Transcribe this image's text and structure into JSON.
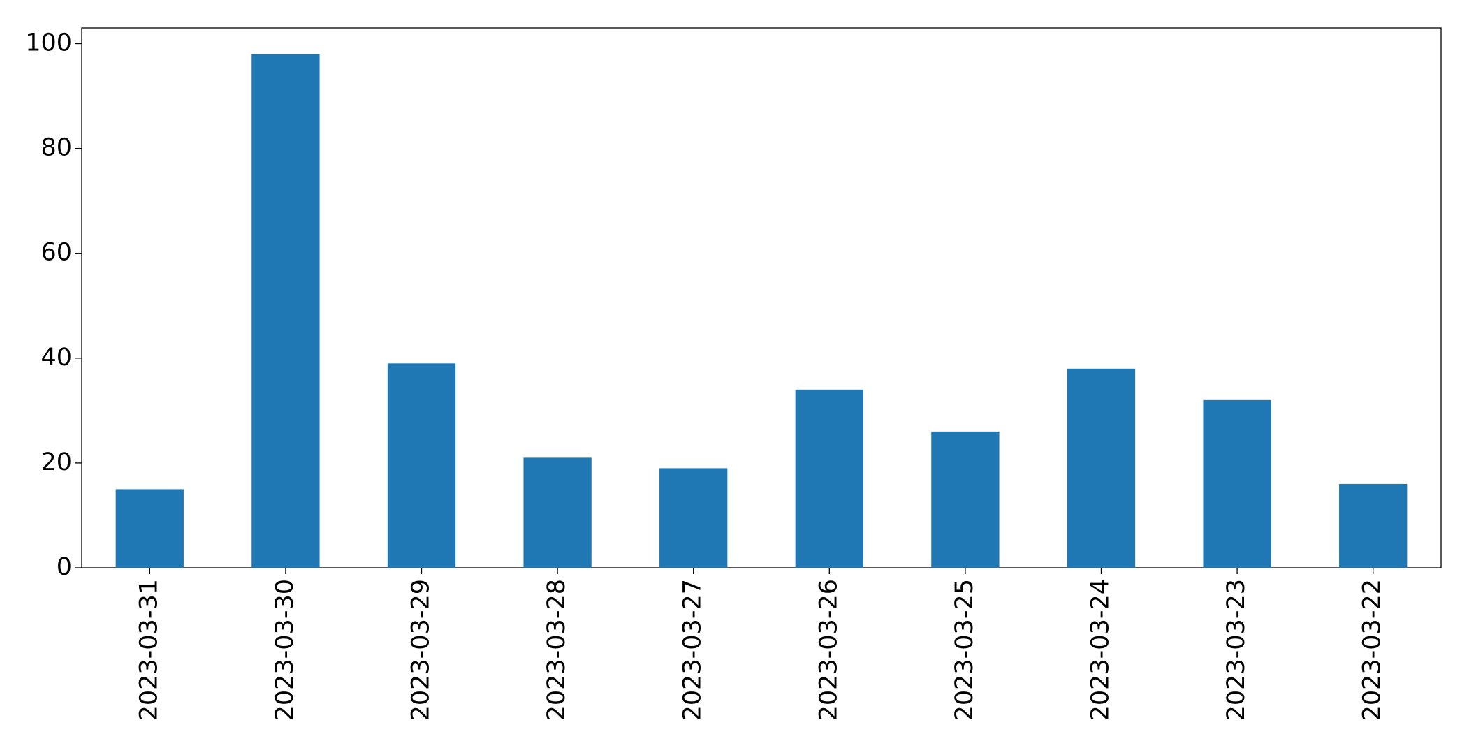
{
  "chart_data": {
    "type": "bar",
    "categories": [
      "2023-03-31",
      "2023-03-30",
      "2023-03-29",
      "2023-03-28",
      "2023-03-27",
      "2023-03-26",
      "2023-03-25",
      "2023-03-24",
      "2023-03-23",
      "2023-03-22"
    ],
    "values": [
      15,
      98,
      39,
      21,
      19,
      34,
      26,
      38,
      32,
      16
    ],
    "color": "#1f77b4",
    "ylim": [
      0,
      103
    ],
    "yticks": [
      0,
      20,
      40,
      60,
      80,
      100
    ],
    "grid": false
  }
}
